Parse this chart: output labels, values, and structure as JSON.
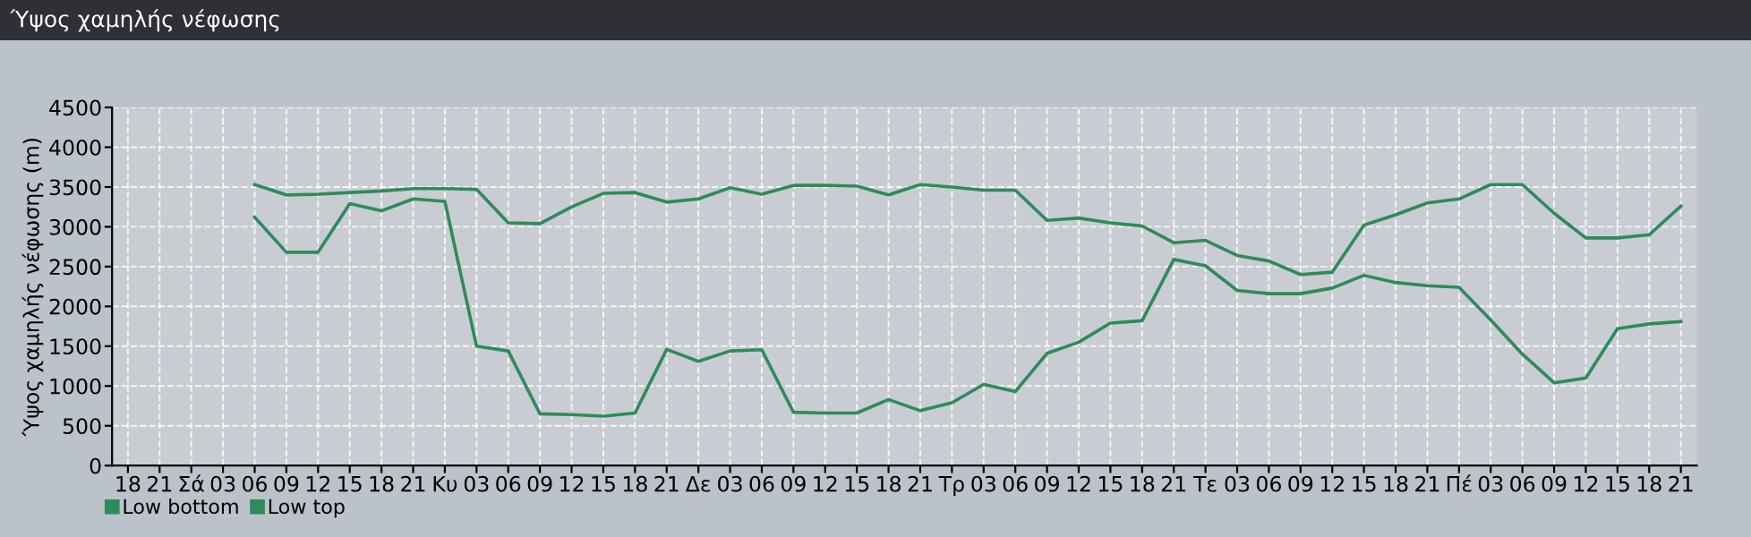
{
  "chart_data": {
    "type": "line",
    "title": "Ύψος χαμηλής νέφωσης",
    "ylabel": "Ύψος χαμηλής νέφωσης (m)",
    "categories": [
      "18",
      "21",
      "Σά",
      "03",
      "06",
      "09",
      "12",
      "15",
      "18",
      "21",
      "Κυ",
      "03",
      "06",
      "09",
      "12",
      "15",
      "18",
      "21",
      "Δε",
      "03",
      "06",
      "09",
      "12",
      "15",
      "18",
      "21",
      "Τρ",
      "03",
      "06",
      "09",
      "12",
      "15",
      "18",
      "21",
      "Τε",
      "03",
      "06",
      "09",
      "12",
      "15",
      "18",
      "21",
      "Πέ",
      "03",
      "06",
      "09",
      "12",
      "15",
      "18",
      "21"
    ],
    "series": [
      {
        "name": "Low bottom",
        "color": "#2e8b5a",
        "values": [
          null,
          null,
          null,
          null,
          3120,
          2680,
          2680,
          3290,
          3200,
          3350,
          3320,
          1500,
          1440,
          650,
          640,
          620,
          660,
          1460,
          1310,
          1440,
          1455,
          670,
          660,
          660,
          830,
          690,
          790,
          1020,
          930,
          1410,
          1550,
          1790,
          1820,
          2590,
          2510,
          2200,
          2160,
          2160,
          2230,
          2390,
          2300,
          2260,
          2240,
          1830,
          1400,
          1040,
          1100,
          1720,
          1780,
          1810
        ]
      },
      {
        "name": "Low top",
        "color": "#2e8b5a",
        "values": [
          null,
          null,
          null,
          null,
          3530,
          3400,
          3410,
          3430,
          3450,
          3480,
          3480,
          3470,
          3050,
          3040,
          3250,
          3420,
          3430,
          3310,
          3350,
          3490,
          3410,
          3520,
          3520,
          3510,
          3400,
          3530,
          3500,
          3460,
          3460,
          3080,
          3110,
          3050,
          3010,
          2800,
          2830,
          2640,
          2570,
          2400,
          2430,
          3020,
          3150,
          3300,
          3350,
          3530,
          3530,
          3170,
          2860,
          2860,
          2900,
          3260
        ]
      }
    ],
    "ylim": [
      0,
      4500
    ],
    "yticks": [
      0,
      500,
      1000,
      1500,
      2000,
      2500,
      3000,
      3500,
      4000,
      4500
    ],
    "grid": true,
    "legend": "bottom left",
    "line_style": "solid"
  }
}
